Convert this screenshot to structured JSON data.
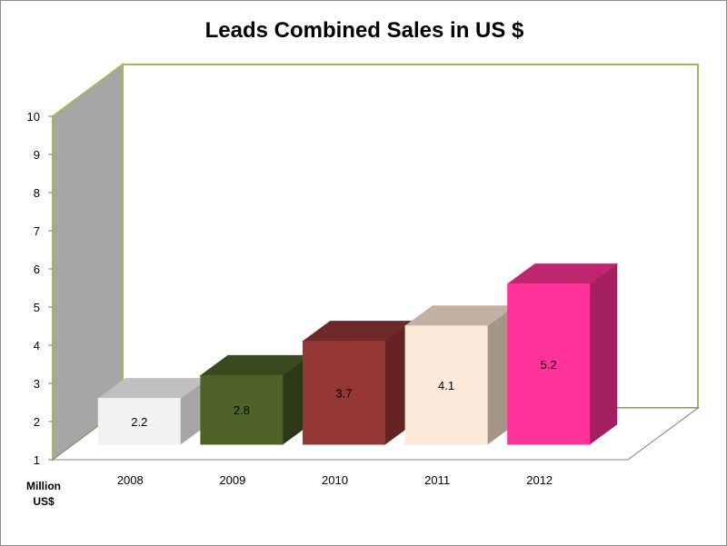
{
  "chart_data": {
    "type": "bar",
    "title": "Leads Combined Sales in US $",
    "categories": [
      "2008",
      "2009",
      "2010",
      "2011",
      "2012"
    ],
    "values": [
      2.2,
      2.8,
      3.7,
      4.1,
      5.2
    ],
    "value_labels": [
      "2.2",
      "2.8",
      "3.7",
      "4.1",
      "5.2"
    ],
    "yticks": [
      "1",
      "2",
      "3",
      "4",
      "5",
      "6",
      "7",
      "8",
      "9",
      "10"
    ],
    "ylim": [
      1,
      10
    ],
    "ylabel_lines": [
      "Million",
      "US$"
    ],
    "xlabel": "",
    "grid": false,
    "style": "3d-column",
    "colors": {
      "front": [
        "#f2f2f2",
        "#4f6228",
        "#953735",
        "#fde9d9",
        "#ff3399"
      ],
      "top": [
        "#bfbfbf",
        "#3b4a1e",
        "#6f2928",
        "#c4b1a5",
        "#c0266f"
      ],
      "side": [
        "#a6a6a6",
        "#2c3816",
        "#632423",
        "#a59488",
        "#a52060"
      ],
      "back_wall": "#ffffff",
      "side_wall": "#a6a6a6",
      "wall_border": "#9bbb59",
      "floor_border": "#7f7f7f"
    }
  }
}
